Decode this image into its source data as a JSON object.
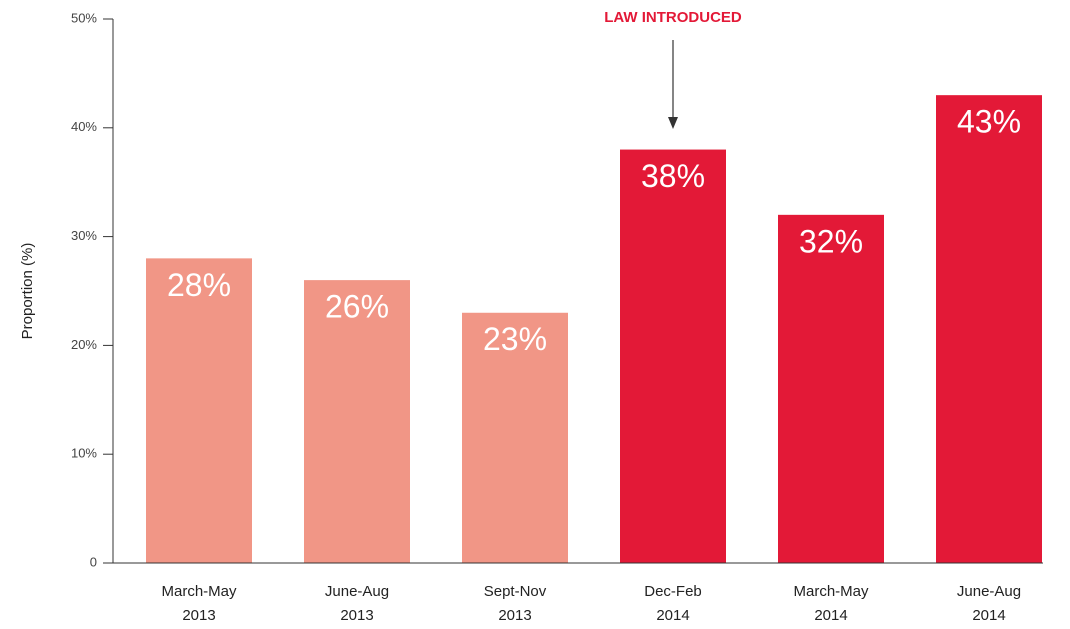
{
  "chart_data": {
    "type": "bar",
    "y_label": "Proportion (%)",
    "categories": [
      [
        "March-May",
        "2013"
      ],
      [
        "June-Aug",
        "2013"
      ],
      [
        "Sept-Nov",
        "2013"
      ],
      [
        "Dec-Feb",
        "2014"
      ],
      [
        "March-May",
        "2014"
      ],
      [
        "June-Aug",
        "2014"
      ]
    ],
    "values": [
      28,
      26,
      23,
      38,
      32,
      43
    ],
    "value_labels": [
      "28%",
      "26%",
      "23%",
      "38%",
      "32%",
      "43%"
    ],
    "colors": [
      "#f19686",
      "#f19686",
      "#f19686",
      "#e31937",
      "#e31937",
      "#e31937"
    ],
    "ylim": [
      0,
      50
    ],
    "yticks": [
      0,
      {
        "value": 10,
        "label": "10%"
      },
      {
        "value": 20,
        "label": "20%"
      },
      {
        "value": 30,
        "label": "30%"
      },
      {
        "value": 40,
        "label": "40%"
      },
      {
        "value": 50,
        "label": "50%"
      }
    ],
    "annotation": {
      "text": "LAW INTRODUCED",
      "category_index": 3,
      "color": "#e31937"
    }
  }
}
